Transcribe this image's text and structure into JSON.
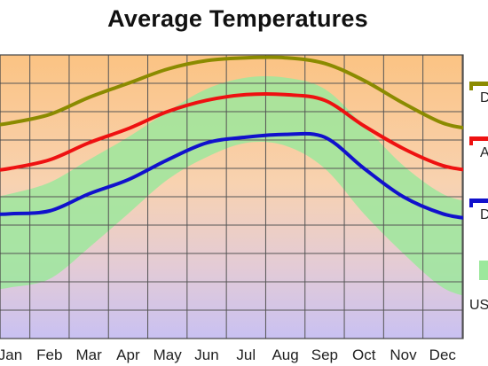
{
  "chart_data": {
    "type": "line",
    "title": "Average Temperatures",
    "xlabel": "",
    "ylabel": "",
    "ylim": [
      0,
      100
    ],
    "grid": true,
    "legend_position": "right",
    "categories": [
      "Jan",
      "Feb",
      "Mar",
      "Apr",
      "May",
      "Jun",
      "Jul",
      "Aug",
      "Sep",
      "Oct",
      "Nov",
      "Dec"
    ],
    "series": [
      {
        "name": "D",
        "color": "#8b8b00",
        "values": [
          76,
          79,
          85,
          90,
          95,
          98,
          99,
          99,
          97,
          91,
          83,
          76
        ]
      },
      {
        "name": "A",
        "color": "#ee1111",
        "values": [
          60,
          63,
          69,
          74,
          80,
          84,
          86,
          86,
          84,
          75,
          67,
          61
        ]
      },
      {
        "name": "D",
        "color": "#1111cc",
        "values": [
          44,
          45,
          51,
          56,
          63,
          69,
          71,
          72,
          71,
          60,
          50,
          44
        ]
      }
    ],
    "band": {
      "name": "US",
      "color": "#9ce89c",
      "upper": [
        51,
        55,
        63,
        71,
        80,
        88,
        92,
        92,
        88,
        75,
        61,
        51
      ],
      "lower": [
        18,
        21,
        32,
        44,
        56,
        64,
        69,
        68,
        60,
        44,
        30,
        18
      ]
    }
  }
}
